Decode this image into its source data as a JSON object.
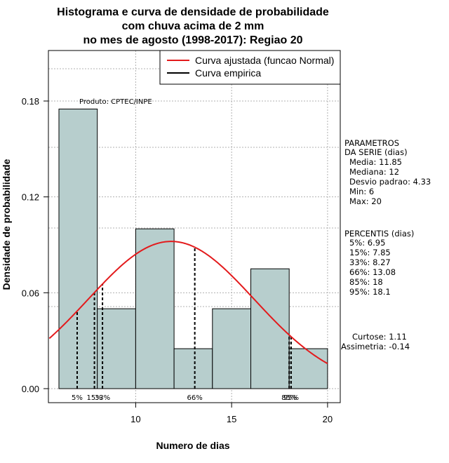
{
  "title_lines": [
    "Histograma e curva de densidade de probabilidade",
    "com chuva acima de 2 mm",
    "no mes de agosto (1998-2017): Regiao 20"
  ],
  "product_label": "Produto: CPTEC/INPE",
  "legend": {
    "fitted": "Curva ajustada (funcao Normal)",
    "empirical": "Curva empirica"
  },
  "parameters": {
    "heading": [
      "PARAMETROS",
      "DA SERIE (dias)"
    ],
    "lines": [
      "Media: 11.85",
      "Mediana: 12",
      "Desvio padrao: 4.33",
      "Min: 6",
      "Max: 20"
    ]
  },
  "percentiles": {
    "heading": "PERCENTIS (dias)",
    "lines": [
      "5%: 6.95",
      "15%: 7.85",
      "33%: 8.27",
      "66%: 13.08",
      "85%: 18",
      "95%: 18.1"
    ]
  },
  "shape": {
    "lines": [
      "Curtose: 1.11",
      "Assimetria: -0.14"
    ]
  },
  "colors": {
    "bar_fill": "#b7cecd",
    "curve": "#e31a1c",
    "grid": "#b0b0b0"
  },
  "chart_data": {
    "type": "bar",
    "title": "Histograma e curva de densidade de probabilidade com chuva acima de 2 mm no mes de agosto (1998-2017): Regiao 20",
    "xlabel": "Numero de dias",
    "ylabel": "Densidade de probabilidade",
    "xlim": [
      5.5,
      21
    ],
    "ylim": [
      0,
      0.205
    ],
    "x_ticks": [
      10,
      15,
      20
    ],
    "y_ticks": [
      0.0,
      0.06,
      0.12,
      0.18
    ],
    "y_tick_labels": [
      "0.00",
      "0.06",
      "0.12",
      "0.18"
    ],
    "bins": [
      {
        "x0": 6,
        "x1": 8,
        "density": 0.175
      },
      {
        "x0": 8,
        "x1": 10,
        "density": 0.05
      },
      {
        "x0": 10,
        "x1": 12,
        "density": 0.1
      },
      {
        "x0": 12,
        "x1": 14,
        "density": 0.025
      },
      {
        "x0": 14,
        "x1": 16,
        "density": 0.05
      },
      {
        "x0": 16,
        "x1": 18,
        "density": 0.075
      },
      {
        "x0": 18,
        "x1": 20,
        "density": 0.025
      }
    ],
    "normal_fit": {
      "mean": 11.85,
      "sd": 4.33
    },
    "percentile_markers": [
      {
        "label": "5%",
        "value": 6.95
      },
      {
        "label": "15%",
        "value": 7.85
      },
      {
        "label": "33%",
        "value": 8.27
      },
      {
        "label": "66%",
        "value": 13.08
      },
      {
        "label": "85%",
        "value": 18
      },
      {
        "label": "95%",
        "value": 18.1
      }
    ],
    "legend_position": "top-right",
    "grid": true
  }
}
